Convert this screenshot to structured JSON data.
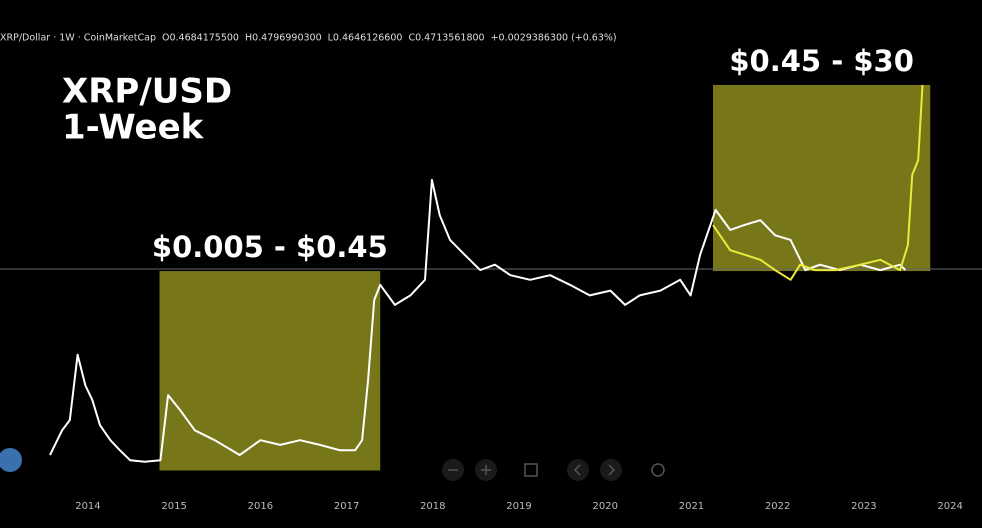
{
  "chart_data": {
    "type": "line",
    "header": [
      "XRP/Dollar · 1W · CoinMarketCap",
      "O0.4684175500",
      "H0.4796990300",
      "L0.4646126600",
      "C0.4713561800",
      "+0.0029386300 (+0.63%)"
    ],
    "title": "XRP/USD",
    "subtitle": "1-Week",
    "log_scale": true,
    "xlim": [
      2012.98,
      2024.37
    ],
    "xticks": [
      2014,
      2015,
      2016,
      2017,
      2018,
      2019,
      2020,
      2021,
      2022,
      2023,
      2024
    ],
    "ylim": [
      0.00257,
      204
    ],
    "last_price": 0.47135618,
    "series": [
      {
        "color": "#ffffff",
        "x": [
          2013.56,
          2013.7,
          2013.79,
          2013.88,
          2013.97,
          2014.05,
          2014.14,
          2014.26,
          2014.37,
          2014.49,
          2014.66,
          2014.84,
          2014.93,
          2015.07,
          2015.24,
          2015.47,
          2015.76,
          2016.0,
          2016.23,
          2016.46,
          2016.69,
          2016.92,
          2017.1,
          2017.18,
          2017.25,
          2017.32,
          2017.39,
          2017.56,
          2017.74,
          2017.91,
          2017.99,
          2018.08,
          2018.2,
          2018.37,
          2018.55,
          2018.72,
          2018.9,
          2019.13,
          2019.36,
          2019.59,
          2019.82,
          2020.06,
          2020.23,
          2020.4,
          2020.64,
          2020.87,
          2020.99,
          2021.1,
          2021.28,
          2021.45,
          2021.62,
          2021.8,
          2021.97,
          2022.15,
          2022.32,
          2022.49,
          2022.72,
          2022.96,
          2023.19,
          2023.42,
          2023.48
        ],
        "values": [
          0.0071,
          0.0124,
          0.0156,
          0.068,
          0.034,
          0.0246,
          0.0139,
          0.0099,
          0.0079,
          0.0063,
          0.0061,
          0.0063,
          0.0274,
          0.0195,
          0.0124,
          0.0099,
          0.0071,
          0.0099,
          0.0089,
          0.0099,
          0.0089,
          0.0079,
          0.0079,
          0.0099,
          0.0385,
          0.234,
          0.33,
          0.21,
          0.26,
          0.37,
          3.52,
          1.59,
          0.91,
          0.65,
          0.46,
          0.52,
          0.41,
          0.37,
          0.41,
          0.33,
          0.26,
          0.29,
          0.21,
          0.26,
          0.29,
          0.37,
          0.26,
          0.65,
          1.79,
          1.14,
          1.28,
          1.42,
          1.01,
          0.91,
          0.46,
          0.52,
          0.46,
          0.52,
          0.46,
          0.52,
          0.46
        ]
      },
      {
        "color": "#eaea3a",
        "x": [
          2021.25,
          2021.45,
          2021.62,
          2021.8,
          2021.97,
          2022.15,
          2022.26,
          2022.43,
          2022.67,
          2022.96,
          2023.19,
          2023.42,
          2023.51,
          2023.56,
          2023.63,
          2023.68
        ],
        "values": [
          1.27,
          0.72,
          0.65,
          0.58,
          0.46,
          0.37,
          0.52,
          0.46,
          0.46,
          0.52,
          0.58,
          0.46,
          0.81,
          3.94,
          5.5,
          30
        ]
      }
    ],
    "annotations": [
      {
        "label": "$0.005 - $0.45",
        "x": [
          2014.83,
          2017.39
        ],
        "y": [
          0.005,
          0.45
        ]
      },
      {
        "label": "$0.45 - $30",
        "x": [
          2021.25,
          2023.77
        ],
        "y": [
          0.45,
          30
        ]
      }
    ]
  }
}
